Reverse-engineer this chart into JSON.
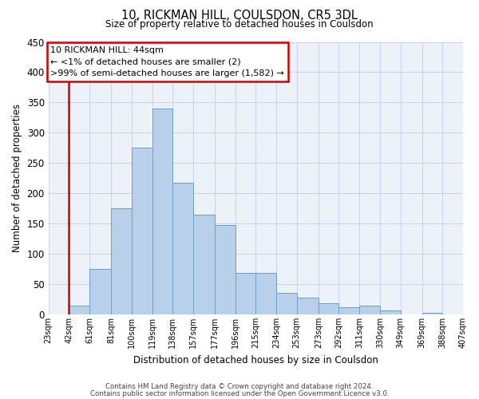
{
  "title": "10, RICKMAN HILL, COULSDON, CR5 3DL",
  "subtitle": "Size of property relative to detached houses in Coulsdon",
  "xlabel": "Distribution of detached houses by size in Coulsdon",
  "ylabel": "Number of detached properties",
  "bin_labels": [
    "23sqm",
    "42sqm",
    "61sqm",
    "81sqm",
    "100sqm",
    "119sqm",
    "138sqm",
    "157sqm",
    "177sqm",
    "196sqm",
    "215sqm",
    "234sqm",
    "253sqm",
    "273sqm",
    "292sqm",
    "311sqm",
    "330sqm",
    "349sqm",
    "369sqm",
    "388sqm",
    "407sqm"
  ],
  "bar_values": [
    0,
    14,
    75,
    175,
    275,
    340,
    218,
    165,
    147,
    69,
    68,
    36,
    28,
    18,
    12,
    15,
    7,
    0,
    3,
    0,
    0
  ],
  "bar_color": "#b8d0ea",
  "bar_edge_color": "#6aa0cc",
  "ylim": [
    0,
    450
  ],
  "yticks": [
    0,
    50,
    100,
    150,
    200,
    250,
    300,
    350,
    400,
    450
  ],
  "property_line_x": 42,
  "property_line_color": "#cc0000",
  "annotation_line1": "10 RICKMAN HILL: 44sqm",
  "annotation_line2": "← <1% of detached houses are smaller (2)",
  "annotation_line3": ">99% of semi-detached houses are larger (1,582) →",
  "annotation_box_color": "#cc0000",
  "footer_line1": "Contains HM Land Registry data © Crown copyright and database right 2024.",
  "footer_line2": "Contains public sector information licensed under the Open Government Licence v3.0.",
  "bg_color": "#edf2f9",
  "grid_color": "#c8d4e8"
}
